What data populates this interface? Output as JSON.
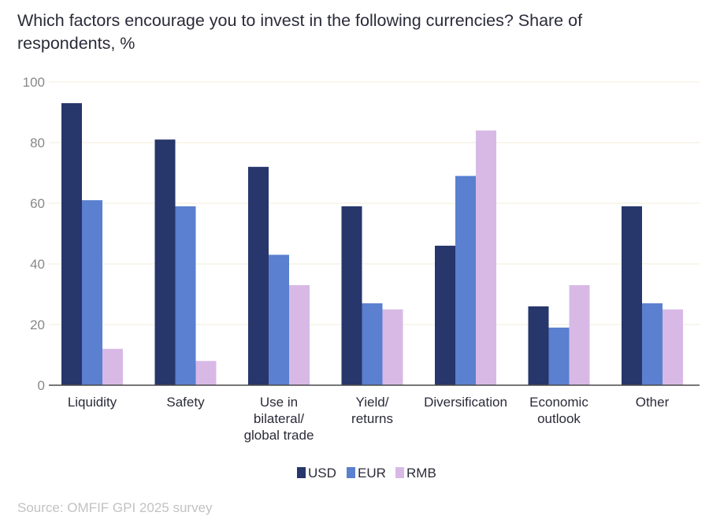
{
  "title_line1": "Which factors encourage you to invest in the following currencies? Share of",
  "title_line2": "respondents, %",
  "source": "Source: OMFIF GPI 2025 survey",
  "colors": {
    "USD": "#27366b",
    "EUR": "#5a80cf",
    "RMB": "#d8b9e6",
    "grid": "#f0edd8",
    "axis": "#4a4a4a",
    "tick_text": "#888888"
  },
  "chart_data": {
    "type": "bar",
    "title": "Which factors encourage you to invest in the following currencies? Share of respondents, %",
    "categories": [
      [
        "Liquidity"
      ],
      [
        "Safety"
      ],
      [
        "Use in",
        "bilateral/",
        "global trade"
      ],
      [
        "Yield/",
        "returns"
      ],
      [
        "Diversification"
      ],
      [
        "Economic",
        "outlook"
      ],
      [
        "Other"
      ]
    ],
    "series": [
      {
        "name": "USD",
        "values": [
          93,
          81,
          72,
          59,
          46,
          26,
          59
        ]
      },
      {
        "name": "EUR",
        "values": [
          61,
          59,
          43,
          27,
          69,
          19,
          27
        ]
      },
      {
        "name": "RMB",
        "values": [
          12,
          8,
          33,
          25,
          84,
          33,
          25
        ]
      }
    ],
    "ylim": [
      0,
      100
    ],
    "yticks": [
      0,
      20,
      40,
      60,
      80,
      100
    ],
    "grid": true,
    "legend": "bottom-center"
  }
}
